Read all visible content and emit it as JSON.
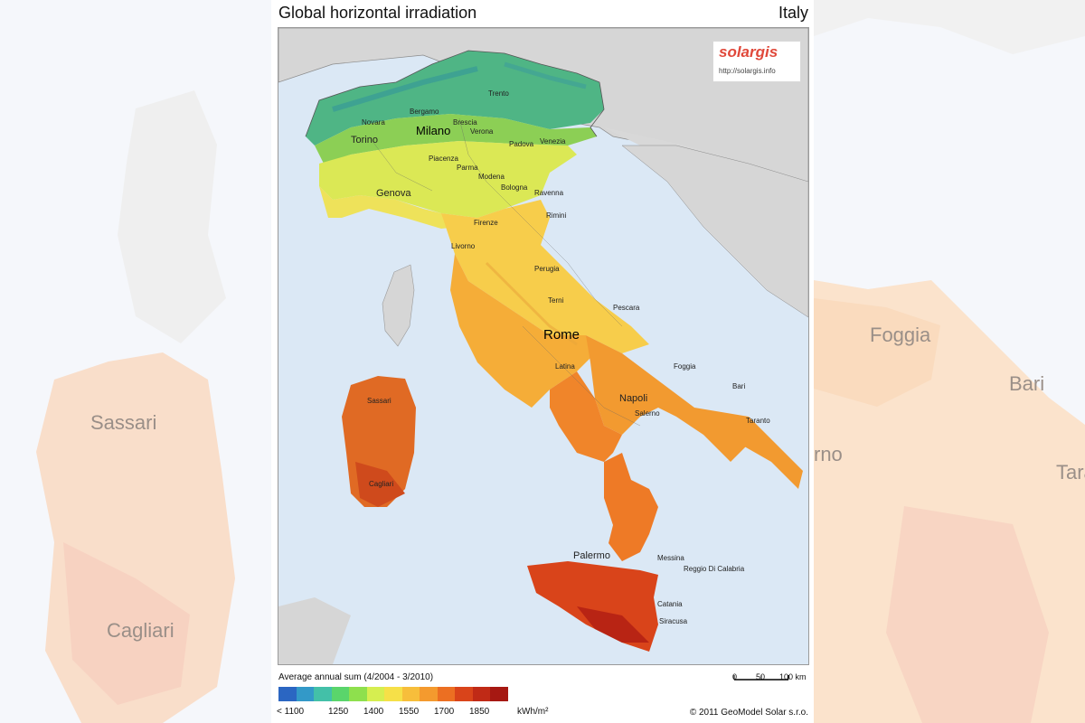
{
  "map": {
    "title": "Global horizontal irradiation",
    "country": "Italy",
    "logo": {
      "text": "solargis",
      "url": "http://solargis.info"
    },
    "legend": {
      "title": "Average annual sum (4/2004 - 3/2010)",
      "colors": [
        "#2b66c2",
        "#3399c8",
        "#43c0a8",
        "#5ad56b",
        "#8ee04d",
        "#d6ee50",
        "#f6e048",
        "#f7be3b",
        "#f49a2e",
        "#ec6f22",
        "#d9441a",
        "#c02a16",
        "#a61812"
      ],
      "tick_labels": [
        "< 1100",
        "1250",
        "1400",
        "1550",
        "1700",
        "1850"
      ],
      "unit": "kWh/m²"
    },
    "scale": {
      "labels": [
        "0",
        "50",
        "100 km"
      ]
    },
    "copyright": "© 2011 GeoModel Solar s.r.o.",
    "cities": [
      {
        "name": "Milano",
        "size": "big"
      },
      {
        "name": "Torino",
        "size": "normal"
      },
      {
        "name": "Genova",
        "size": "normal"
      },
      {
        "name": "Novara",
        "size": "small"
      },
      {
        "name": "Bergamo",
        "size": "small"
      },
      {
        "name": "Brescia",
        "size": "small"
      },
      {
        "name": "Verona",
        "size": "small"
      },
      {
        "name": "Trento",
        "size": "small"
      },
      {
        "name": "Padova",
        "size": "small"
      },
      {
        "name": "Venezia",
        "size": "small"
      },
      {
        "name": "Piacenza",
        "size": "small"
      },
      {
        "name": "Parma",
        "size": "small"
      },
      {
        "name": "Modena",
        "size": "small"
      },
      {
        "name": "Bologna",
        "size": "small"
      },
      {
        "name": "Ravenna",
        "size": "small"
      },
      {
        "name": "Rimini",
        "size": "small"
      },
      {
        "name": "Firenze",
        "size": "small"
      },
      {
        "name": "Livorno",
        "size": "small"
      },
      {
        "name": "Perugia",
        "size": "small"
      },
      {
        "name": "Terni",
        "size": "small"
      },
      {
        "name": "Pescara",
        "size": "small"
      },
      {
        "name": "Rome",
        "size": "bigger"
      },
      {
        "name": "Latina",
        "size": "small"
      },
      {
        "name": "Foggia",
        "size": "small"
      },
      {
        "name": "Bari",
        "size": "small"
      },
      {
        "name": "Napoli",
        "size": "normal"
      },
      {
        "name": "Salerno",
        "size": "small"
      },
      {
        "name": "Taranto",
        "size": "small"
      },
      {
        "name": "Sassari",
        "size": "small"
      },
      {
        "name": "Cagliari",
        "size": "small"
      },
      {
        "name": "Palermo",
        "size": "normal"
      },
      {
        "name": "Messina",
        "size": "small"
      },
      {
        "name": "Reggio Di Calabria",
        "size": "small"
      },
      {
        "name": "Catania",
        "size": "small"
      },
      {
        "name": "Siracusa",
        "size": "small"
      }
    ]
  },
  "background": {
    "left_labels": [
      "Sassari",
      "Cagliari"
    ],
    "right_labels": [
      "Foggia",
      "Bari",
      "rno",
      "Tara"
    ]
  }
}
